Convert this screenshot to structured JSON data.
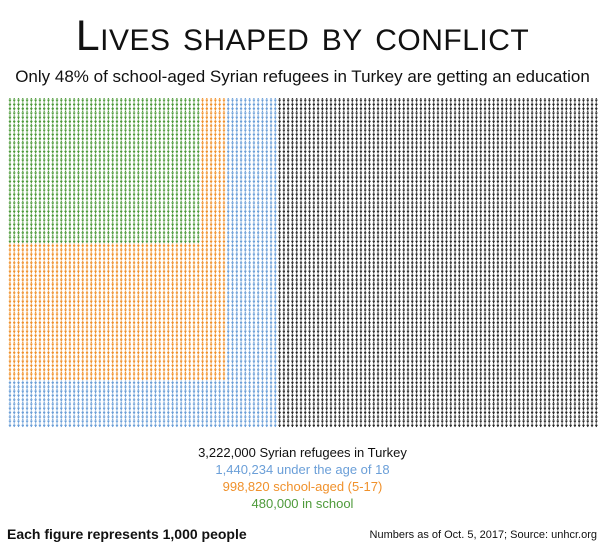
{
  "colors": {
    "in_school": "#4e9a3a",
    "school_aged": "#f0912b",
    "under_18": "#6b9fd8",
    "total": "#2b2b2b",
    "background": "#ffffff"
  },
  "chart_data": {
    "type": "pictogram",
    "title": "Lives shaped by conflict",
    "subtitle": "Only 48% of school-aged Syrian refugees in Turkey are getting an education",
    "unit_note": "Each figure represents 1,000 people",
    "series": [
      {
        "name": "3,222,000 Syrian refugees in Turkey",
        "value": 3222000,
        "figures": 3222
      },
      {
        "name": "1,440,234 under the age of 18",
        "value": 1440234,
        "figures": 1440
      },
      {
        "name": "998,820 school-aged (5-17)",
        "value": 998820,
        "figures": 999
      },
      {
        "name": "480,000 in school",
        "value": 480000,
        "figures": 480
      }
    ]
  },
  "legend": {
    "total": "3,222,000 Syrian refugees in Turkey",
    "under_18": "1,440,234 under the age of 18",
    "school_aged": "998,820 school-aged (5-17)",
    "in_school": "480,000 in school"
  },
  "footer": {
    "note": "Each figure represents 1,000 people",
    "source": "Numbers as of Oct. 5, 2017; Source: unhcr.org"
  }
}
